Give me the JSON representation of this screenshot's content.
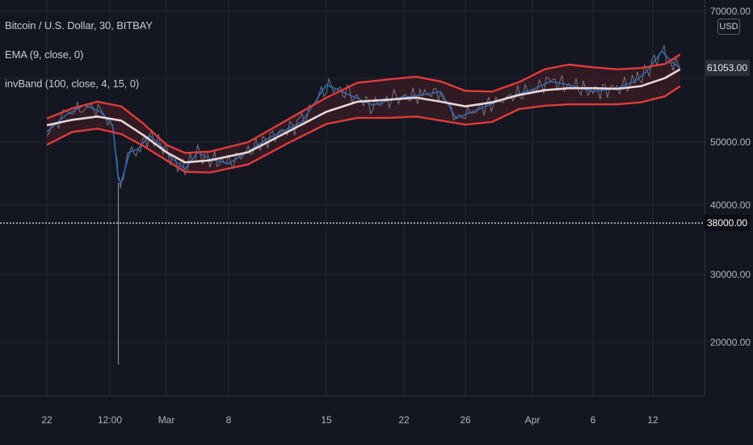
{
  "chart_title": "Bitcoin / U.S. Dollar, 30, BITBAY",
  "indicators": [
    {
      "label": "EMA (9, close, 0)"
    },
    {
      "label": "invBand (100, close, 4, 15, 0)"
    }
  ],
  "currency_button": "USD",
  "price_scale": {
    "ticks": [
      "70000.00",
      "50000.00",
      "40000.00",
      "30000.00",
      "20000.00"
    ],
    "last_price_label": "61053.00",
    "crosshair_price_label": "38000.00"
  },
  "time_scale": {
    "ticks": [
      "22",
      "12:00",
      "Mar",
      "8",
      "15",
      "22",
      "26",
      "Apr",
      "6",
      "12"
    ]
  },
  "colors": {
    "background": "#141722",
    "price_line": "#2f6ab0",
    "raw_price_line": "#8a8d97",
    "band_outer": "#e03b3b",
    "band_middle": "#e8d8d8",
    "band_fill": "#3a1c24",
    "crosshair": "#d1d4dc"
  },
  "chart_data": {
    "type": "line",
    "title": "Bitcoin / U.S. Dollar, 30, BITBAY",
    "ylim": [
      12000,
      70000
    ],
    "x": [
      "22",
      "12:00",
      "Mar",
      "8",
      "15",
      "22",
      "26",
      "Apr",
      "6",
      "12"
    ],
    "series": [
      {
        "name": "Bitcoin / U.S. Dollar",
        "points": [
          [
            0,
            51500
          ],
          [
            0.3,
            54000
          ],
          [
            0.6,
            55500
          ],
          [
            0.85,
            54500
          ],
          [
            1.05,
            52500
          ],
          [
            1.15,
            44500
          ],
          [
            1.2,
            44000
          ],
          [
            1.35,
            48500
          ],
          [
            1.5,
            49000
          ],
          [
            1.7,
            51000
          ],
          [
            1.9,
            49500
          ],
          [
            2.1,
            47500
          ],
          [
            2.3,
            46000
          ],
          [
            2.5,
            48500
          ],
          [
            2.7,
            47500
          ],
          [
            3.0,
            46800
          ],
          [
            3.4,
            50500
          ],
          [
            3.75,
            53000
          ],
          [
            4.0,
            58500
          ],
          [
            4.3,
            57000
          ],
          [
            4.6,
            55500
          ],
          [
            4.9,
            56500
          ],
          [
            5.3,
            57000
          ],
          [
            5.6,
            57500
          ],
          [
            5.85,
            53500
          ],
          [
            6.1,
            54500
          ],
          [
            6.6,
            56500
          ],
          [
            7.0,
            57800
          ],
          [
            7.3,
            59000
          ],
          [
            7.6,
            58500
          ],
          [
            8.0,
            57500
          ],
          [
            8.4,
            58000
          ],
          [
            8.7,
            59000
          ],
          [
            8.9,
            60500
          ],
          [
            9.15,
            63500
          ],
          [
            9.3,
            62000
          ],
          [
            9.45,
            61000
          ]
        ]
      },
      {
        "name": "EMA (9, close, 0)",
        "points": [
          [
            0,
            52500
          ],
          [
            0.4,
            53300
          ],
          [
            0.8,
            53800
          ],
          [
            1.2,
            53200
          ],
          [
            1.6,
            51000
          ],
          [
            2.0,
            48500
          ],
          [
            2.3,
            47000
          ],
          [
            2.7,
            47300
          ],
          [
            3.2,
            48500
          ],
          [
            3.6,
            51500
          ],
          [
            4.0,
            54500
          ],
          [
            4.4,
            56000
          ],
          [
            4.8,
            56300
          ],
          [
            5.2,
            56600
          ],
          [
            5.6,
            56000
          ],
          [
            6.0,
            55300
          ],
          [
            6.4,
            55900
          ],
          [
            6.8,
            57000
          ],
          [
            7.2,
            57700
          ],
          [
            7.6,
            58000
          ],
          [
            8.0,
            58000
          ],
          [
            8.4,
            57900
          ],
          [
            8.8,
            58300
          ],
          [
            9.2,
            59500
          ],
          [
            9.45,
            60800
          ]
        ]
      },
      {
        "name": "invBand upper",
        "points": [
          [
            0,
            53500
          ],
          [
            0.4,
            55000
          ],
          [
            0.8,
            56000
          ],
          [
            1.2,
            55300
          ],
          [
            1.6,
            52700
          ],
          [
            2.0,
            49600
          ],
          [
            2.3,
            48400
          ],
          [
            2.7,
            48600
          ],
          [
            3.2,
            50000
          ],
          [
            3.6,
            53300
          ],
          [
            4.0,
            56600
          ],
          [
            4.4,
            58800
          ],
          [
            4.8,
            59300
          ],
          [
            5.2,
            59700
          ],
          [
            5.6,
            59000
          ],
          [
            6.0,
            57600
          ],
          [
            6.4,
            57500
          ],
          [
            6.8,
            58900
          ],
          [
            7.2,
            60800
          ],
          [
            7.6,
            61500
          ],
          [
            8.0,
            61100
          ],
          [
            8.4,
            60800
          ],
          [
            8.8,
            61000
          ],
          [
            9.2,
            61600
          ],
          [
            9.45,
            63000
          ]
        ]
      },
      {
        "name": "invBand lower",
        "points": [
          [
            0,
            49600
          ],
          [
            0.4,
            51500
          ],
          [
            0.8,
            52000
          ],
          [
            1.2,
            51200
          ],
          [
            1.6,
            49400
          ],
          [
            2.0,
            47300
          ],
          [
            2.3,
            45600
          ],
          [
            2.7,
            45500
          ],
          [
            3.2,
            46700
          ],
          [
            3.6,
            49800
          ],
          [
            4.0,
            52700
          ],
          [
            4.4,
            53600
          ],
          [
            4.8,
            53600
          ],
          [
            5.2,
            53800
          ],
          [
            5.6,
            53200
          ],
          [
            6.0,
            52600
          ],
          [
            6.4,
            53000
          ],
          [
            6.8,
            54900
          ],
          [
            7.2,
            55400
          ],
          [
            7.6,
            55600
          ],
          [
            8.0,
            55600
          ],
          [
            8.4,
            55600
          ],
          [
            8.8,
            55900
          ],
          [
            9.2,
            56800
          ],
          [
            9.45,
            58300
          ]
        ]
      }
    ],
    "annotations": [
      {
        "type": "wick_low",
        "x": 1.15,
        "low": 17000
      },
      {
        "type": "last_price",
        "value": 61053
      },
      {
        "type": "crosshair_price",
        "value": 38000
      }
    ]
  }
}
